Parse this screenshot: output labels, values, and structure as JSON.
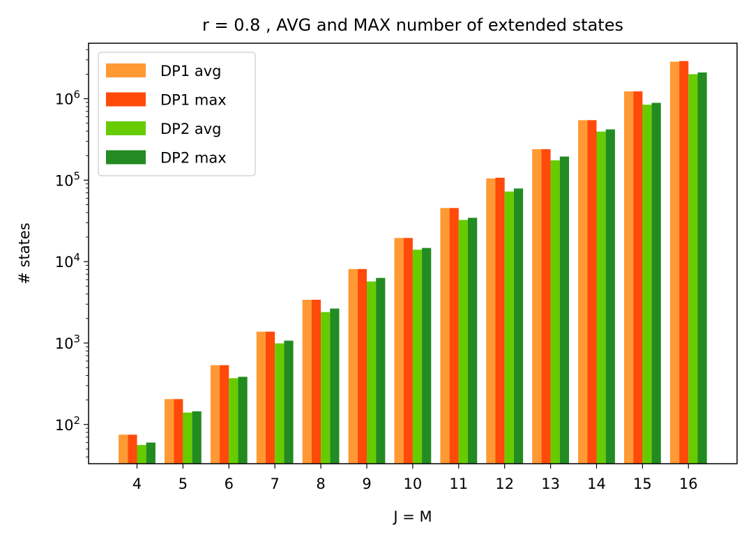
{
  "chart_data": {
    "type": "bar",
    "title": "r = 0.8 , AVG and MAX number of extended states",
    "xlabel": "J = M",
    "ylabel": "# states",
    "yscale": "log",
    "ylim": [
      33,
      4800000
    ],
    "ytick_labels": [
      {
        "value": 100,
        "base": "10",
        "exp": "2"
      },
      {
        "value": 1000,
        "base": "10",
        "exp": "3"
      },
      {
        "value": 10000,
        "base": "10",
        "exp": "4"
      },
      {
        "value": 100000,
        "base": "10",
        "exp": "5"
      },
      {
        "value": 1000000,
        "base": "10",
        "exp": "6"
      }
    ],
    "categories": [
      "4",
      "5",
      "6",
      "7",
      "8",
      "9",
      "10",
      "11",
      "12",
      "13",
      "14",
      "15",
      "16"
    ],
    "series": [
      {
        "name": "DP1 avg",
        "color": "#ff9933",
        "values": [
          75,
          205,
          535,
          1380,
          3400,
          8100,
          19500,
          45500,
          105000,
          240000,
          545000,
          1230000,
          2850000
        ]
      },
      {
        "name": "DP1 max",
        "color": "#ff4a0a",
        "values": [
          75,
          205,
          535,
          1380,
          3400,
          8100,
          19500,
          45500,
          107000,
          240000,
          545000,
          1230000,
          2900000
        ]
      },
      {
        "name": "DP2 avg",
        "color": "#66cc00",
        "values": [
          56,
          140,
          370,
          990,
          2400,
          5700,
          14000,
          32500,
          72500,
          175000,
          395000,
          845000,
          2000000
        ]
      },
      {
        "name": "DP2 max",
        "color": "#228b22",
        "values": [
          60,
          145,
          385,
          1070,
          2650,
          6300,
          14700,
          34500,
          79000,
          195000,
          420000,
          890000,
          2100000
        ]
      }
    ],
    "legend_position": "top-left",
    "grid": false
  }
}
